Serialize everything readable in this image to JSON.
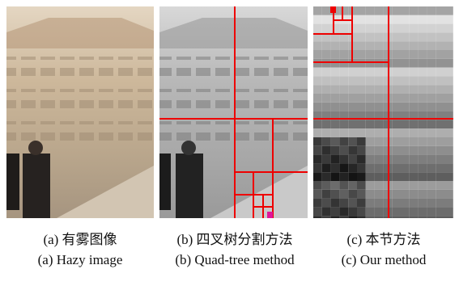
{
  "panels": [
    {
      "caption_zh": "(a) 有雾图像",
      "caption_en": "(a) Hazy image"
    },
    {
      "caption_zh": "(b) 四叉树分割方法",
      "caption_en": "(b) Quad-tree method"
    },
    {
      "caption_zh": "(c) 本节方法",
      "caption_en": "(c) Our method"
    }
  ]
}
